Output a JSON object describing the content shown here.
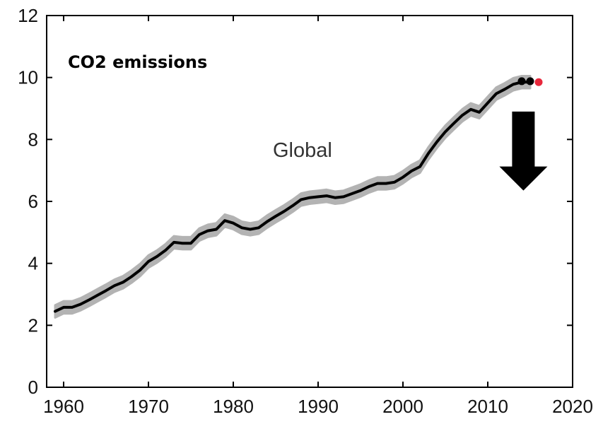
{
  "chart_data": {
    "type": "line",
    "title": "",
    "xlabel": "",
    "ylabel": "",
    "xlim": [
      1958,
      2020
    ],
    "ylim": [
      0,
      12
    ],
    "x_ticks": [
      1960,
      1970,
      1980,
      1990,
      2000,
      2010,
      2020
    ],
    "y_ticks": [
      0,
      2,
      4,
      6,
      8,
      10,
      12
    ],
    "grid": false,
    "legend": "none",
    "annotations": {
      "label_emissions": "CO2 emissions",
      "label_region": "Global"
    },
    "series": [
      {
        "line_color": "#000000",
        "band_color": "#b3b3b3",
        "x": [
          1959,
          1960,
          1961,
          1962,
          1963,
          1964,
          1965,
          1966,
          1967,
          1968,
          1969,
          1970,
          1971,
          1972,
          1973,
          1974,
          1975,
          1976,
          1977,
          1978,
          1979,
          1980,
          1981,
          1982,
          1983,
          1984,
          1985,
          1986,
          1987,
          1988,
          1989,
          1990,
          1991,
          1992,
          1993,
          1994,
          1995,
          1996,
          1997,
          1998,
          1999,
          2000,
          2001,
          2002,
          2003,
          2004,
          2005,
          2006,
          2007,
          2008,
          2009,
          2010,
          2011,
          2012,
          2013,
          2014,
          2015
        ],
        "y": [
          2.45,
          2.58,
          2.58,
          2.68,
          2.82,
          2.97,
          3.12,
          3.28,
          3.39,
          3.57,
          3.78,
          4.06,
          4.22,
          4.42,
          4.68,
          4.65,
          4.65,
          4.93,
          5.05,
          5.1,
          5.38,
          5.3,
          5.15,
          5.1,
          5.15,
          5.35,
          5.52,
          5.68,
          5.86,
          6.06,
          6.12,
          6.15,
          6.18,
          6.12,
          6.15,
          6.25,
          6.35,
          6.48,
          6.58,
          6.58,
          6.62,
          6.78,
          6.98,
          7.12,
          7.55,
          7.92,
          8.25,
          8.52,
          8.78,
          8.97,
          8.88,
          9.18,
          9.48,
          9.62,
          9.78,
          9.85,
          9.85
        ],
        "band_halfwidth": 0.2
      }
    ],
    "markers": [
      {
        "x": 2014,
        "y": 9.88,
        "color": "#000000"
      },
      {
        "x": 2015,
        "y": 9.88,
        "color": "#000000"
      },
      {
        "x": 2016,
        "y": 9.85,
        "color": "#e8283c"
      }
    ],
    "arrow": {
      "x": 2014.2,
      "y_from": 8.9,
      "y_to": 6.35,
      "color": "#000000",
      "direction": "down"
    }
  }
}
